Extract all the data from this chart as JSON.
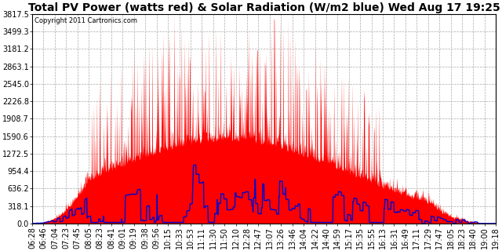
{
  "title": "Total PV Power (watts red) & Solar Radiation (W/m2 blue) Wed Aug 17 19:25",
  "copyright": "Copyright 2011 Cartronics.com",
  "yticks": [
    0.0,
    318.1,
    636.2,
    954.4,
    1272.5,
    1590.6,
    1908.7,
    2226.8,
    2545.0,
    2863.1,
    3181.2,
    3499.3,
    3817.5
  ],
  "ymax": 3817.5,
  "xtick_labels": [
    "06:28",
    "06:46",
    "07:04",
    "07:23",
    "07:45",
    "08:05",
    "08:23",
    "08:41",
    "09:01",
    "09:19",
    "09:38",
    "09:56",
    "10:15",
    "10:33",
    "10:53",
    "11:11",
    "11:30",
    "11:50",
    "12:10",
    "12:28",
    "12:47",
    "13:07",
    "13:26",
    "13:46",
    "14:04",
    "14:22",
    "14:40",
    "14:59",
    "15:17",
    "15:35",
    "15:55",
    "16:13",
    "16:31",
    "16:49",
    "17:11",
    "17:29",
    "17:47",
    "18:05",
    "18:23",
    "18:40",
    "19:00",
    "19:18"
  ],
  "background_color": "#ffffff",
  "grid_color": "#aaaaaa",
  "pv_color": "#ff0000",
  "solar_color": "#0000cc",
  "title_fontsize": 10,
  "tick_fontsize": 7
}
